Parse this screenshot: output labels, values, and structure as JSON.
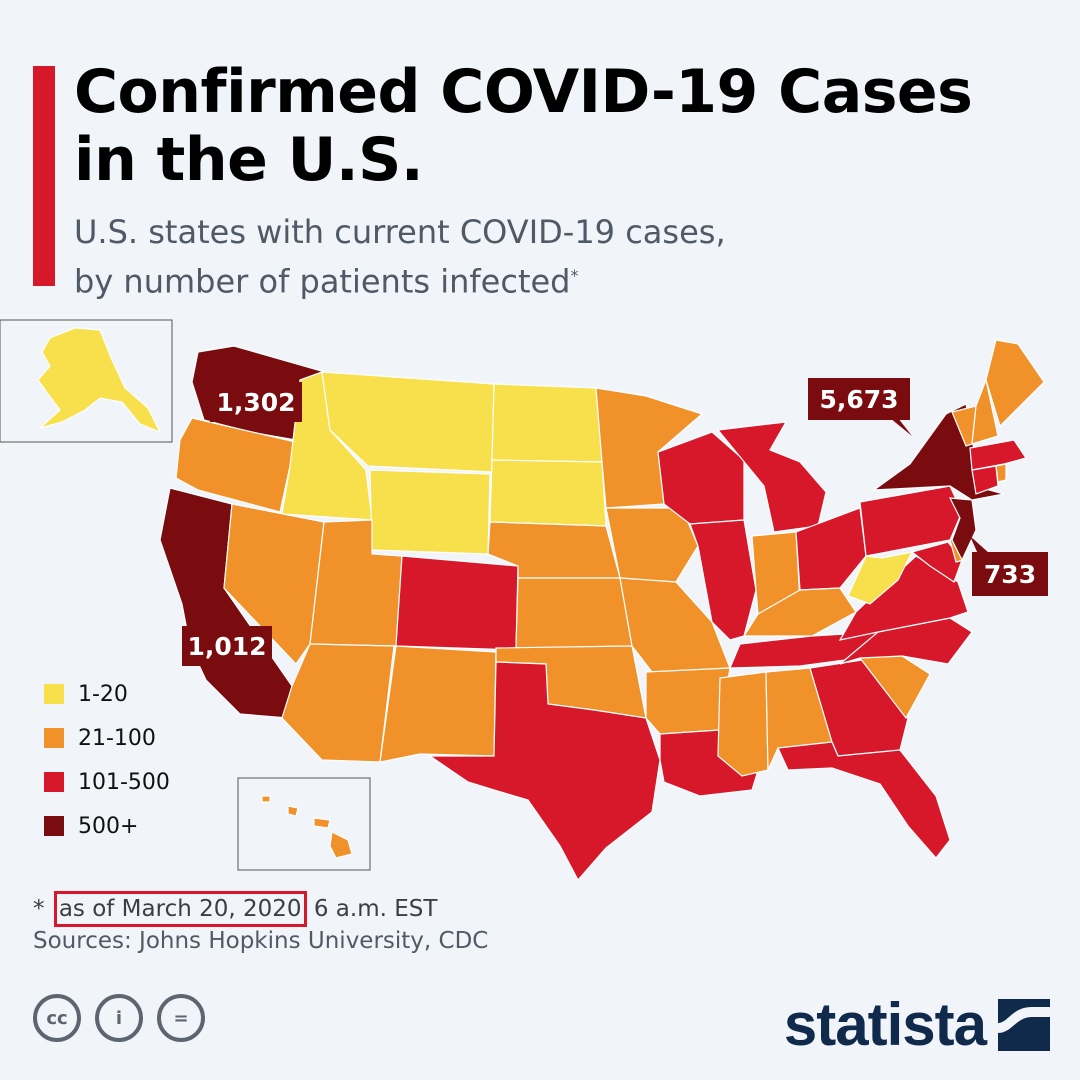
{
  "title_line1": "Confirmed COVID-19 Cases",
  "title_line2": "in the U.S.",
  "subtitle_line1": "U.S. states with current COVID-19 cases,",
  "subtitle_line2": "by number of patients infected",
  "subtitle_marker": "*",
  "legend": [
    {
      "label": "1-20",
      "color": "#f7e04b"
    },
    {
      "label": "21-100",
      "color": "#f0912a"
    },
    {
      "label": "101-500",
      "color": "#d7182a"
    },
    {
      "label": "500+",
      "color": "#7a0b0e"
    }
  ],
  "callouts": {
    "washington": "1,302",
    "california": "1,012",
    "new_york": "5,673",
    "new_jersey": "733"
  },
  "footnote": {
    "marker": "*",
    "highlight": "as of March 20, 2020",
    "rest": "6 a.m. EST"
  },
  "sources": "Sources: Johns Hopkins University, CDC",
  "license_icons": [
    "cc-icon",
    "attribution-icon",
    "no-derivatives-icon"
  ],
  "license_glyphs": {
    "cc": "cc",
    "by": "i",
    "nd": "="
  },
  "logo_text": "statista",
  "states": [
    {
      "state": "Washington",
      "class": "500+"
    },
    {
      "state": "Oregon",
      "class": "21-100"
    },
    {
      "state": "California",
      "class": "500+"
    },
    {
      "state": "Idaho",
      "class": "1-20"
    },
    {
      "state": "Montana",
      "class": "1-20"
    },
    {
      "state": "Wyoming",
      "class": "1-20"
    },
    {
      "state": "Nevada",
      "class": "21-100"
    },
    {
      "state": "Utah",
      "class": "21-100"
    },
    {
      "state": "Arizona",
      "class": "21-100"
    },
    {
      "state": "Colorado",
      "class": "101-500"
    },
    {
      "state": "New Mexico",
      "class": "21-100"
    },
    {
      "state": "North Dakota",
      "class": "1-20"
    },
    {
      "state": "South Dakota",
      "class": "1-20"
    },
    {
      "state": "Nebraska",
      "class": "21-100"
    },
    {
      "state": "Kansas",
      "class": "21-100"
    },
    {
      "state": "Oklahoma",
      "class": "21-100"
    },
    {
      "state": "Texas",
      "class": "101-500"
    },
    {
      "state": "Minnesota",
      "class": "21-100"
    },
    {
      "state": "Iowa",
      "class": "21-100"
    },
    {
      "state": "Missouri",
      "class": "21-100"
    },
    {
      "state": "Arkansas",
      "class": "21-100"
    },
    {
      "state": "Louisiana",
      "class": "101-500"
    },
    {
      "state": "Wisconsin",
      "class": "101-500"
    },
    {
      "state": "Illinois",
      "class": "101-500"
    },
    {
      "state": "Michigan",
      "class": "101-500"
    },
    {
      "state": "Indiana",
      "class": "21-100"
    },
    {
      "state": "Ohio",
      "class": "101-500"
    },
    {
      "state": "Kentucky",
      "class": "21-100"
    },
    {
      "state": "Tennessee",
      "class": "101-500"
    },
    {
      "state": "Mississippi",
      "class": "21-100"
    },
    {
      "state": "Alabama",
      "class": "21-100"
    },
    {
      "state": "Georgia",
      "class": "101-500"
    },
    {
      "state": "Florida",
      "class": "101-500"
    },
    {
      "state": "South Carolina",
      "class": "21-100"
    },
    {
      "state": "North Carolina",
      "class": "101-500"
    },
    {
      "state": "Virginia",
      "class": "101-500"
    },
    {
      "state": "West Virginia",
      "class": "1-20"
    },
    {
      "state": "Pennsylvania",
      "class": "101-500"
    },
    {
      "state": "New York",
      "class": "500+"
    },
    {
      "state": "New Jersey",
      "class": "500+"
    },
    {
      "state": "Maine",
      "class": "21-100"
    },
    {
      "state": "Vermont",
      "class": "21-100"
    },
    {
      "state": "New Hampshire",
      "class": "21-100"
    },
    {
      "state": "Massachusetts",
      "class": "101-500"
    },
    {
      "state": "Connecticut",
      "class": "101-500"
    },
    {
      "state": "Rhode Island",
      "class": "21-100"
    },
    {
      "state": "Maryland",
      "class": "101-500"
    },
    {
      "state": "Delaware",
      "class": "21-100"
    },
    {
      "state": "Alaska",
      "class": "1-20"
    },
    {
      "state": "Hawaii",
      "class": "21-100"
    }
  ]
}
